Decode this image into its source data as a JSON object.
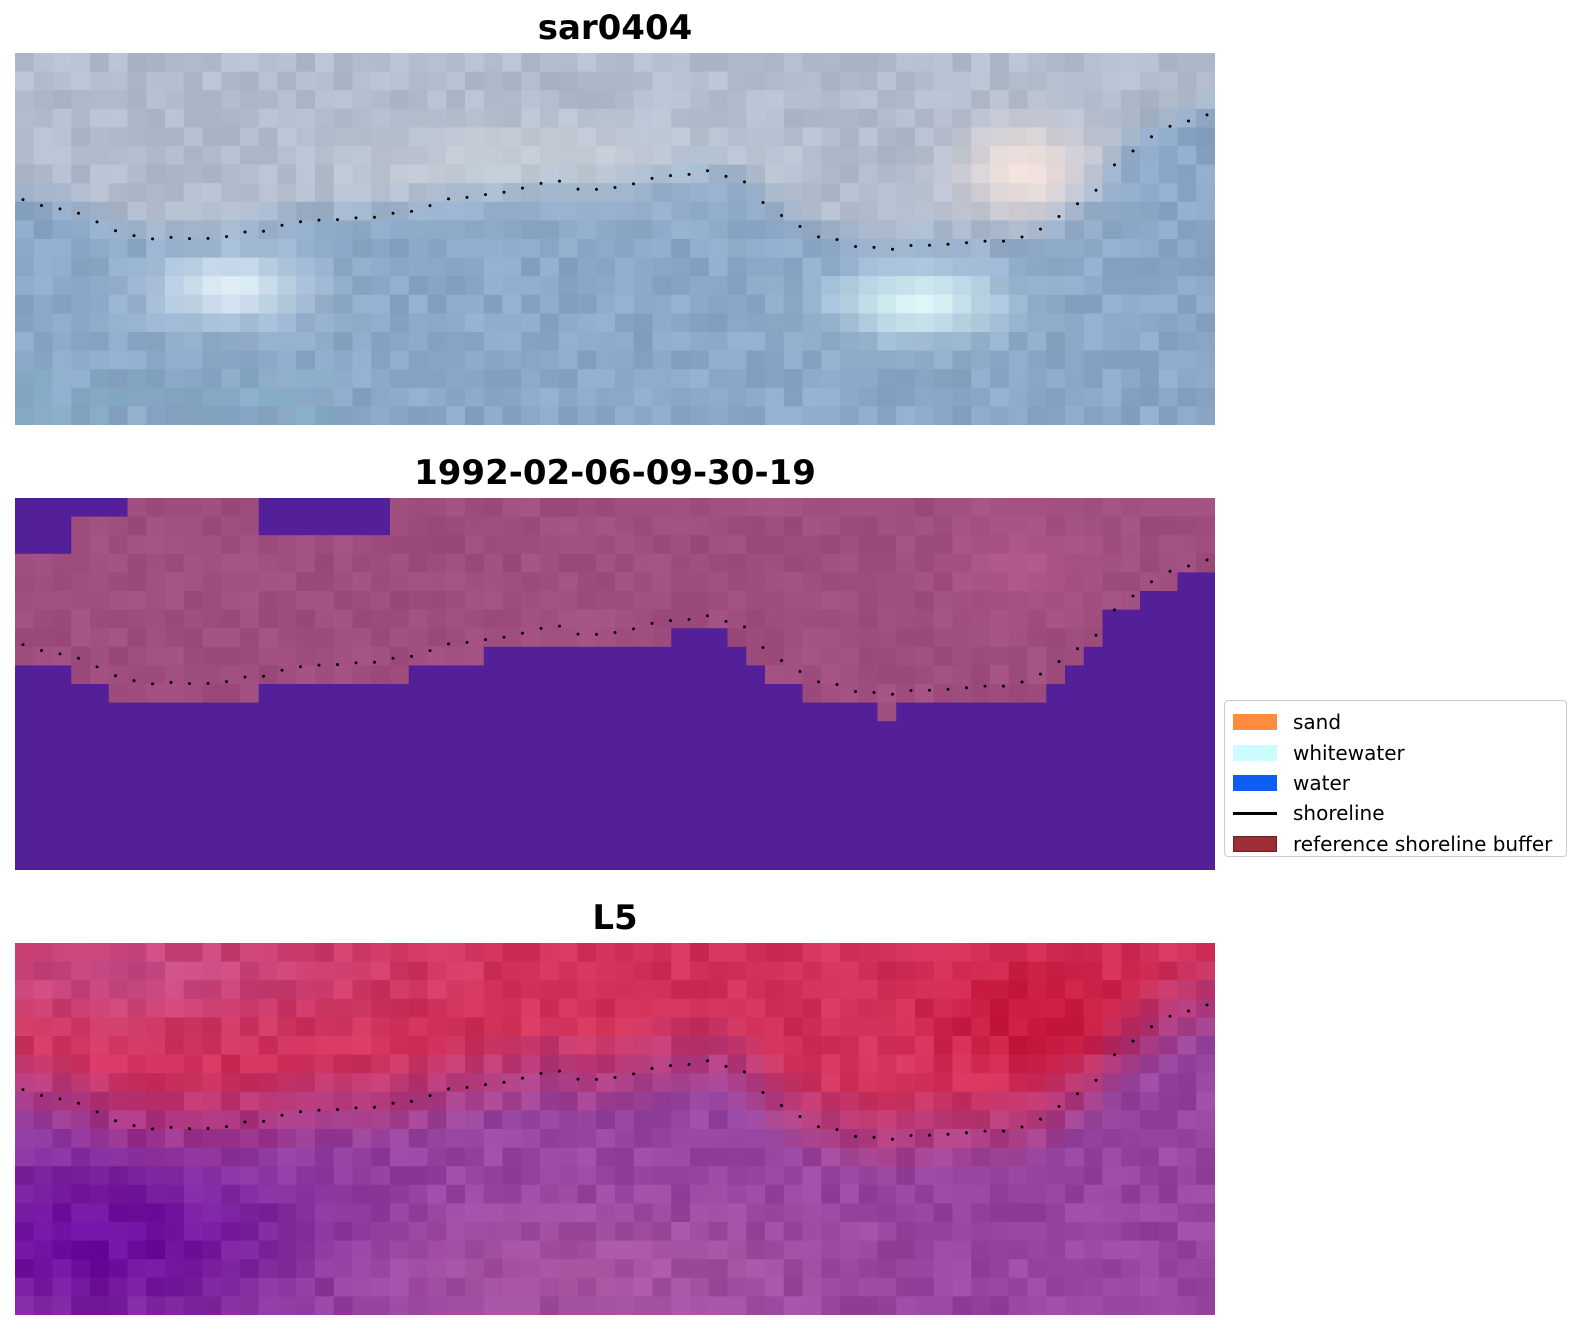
{
  "panels": {
    "rgb": {
      "title": "sar0404"
    },
    "classification": {
      "title": "1992-02-06-09-30-19"
    },
    "index": {
      "title": "L5"
    }
  },
  "legend": {
    "items": [
      {
        "label": "sand",
        "color": "#ff8c3e",
        "type": "patch"
      },
      {
        "label": "whitewater",
        "color": "#ccfcff",
        "type": "patch"
      },
      {
        "label": "water",
        "color": "#0d5ff2",
        "type": "patch"
      },
      {
        "label": "shoreline",
        "color": "#000000",
        "type": "line"
      },
      {
        "label": "reference shoreline buffer",
        "color": "#9c2f36",
        "type": "patch"
      }
    ]
  },
  "colors": {
    "class_water": "#54209a",
    "class_land": "#a04e80",
    "shoreline_dots": "#000000"
  }
}
